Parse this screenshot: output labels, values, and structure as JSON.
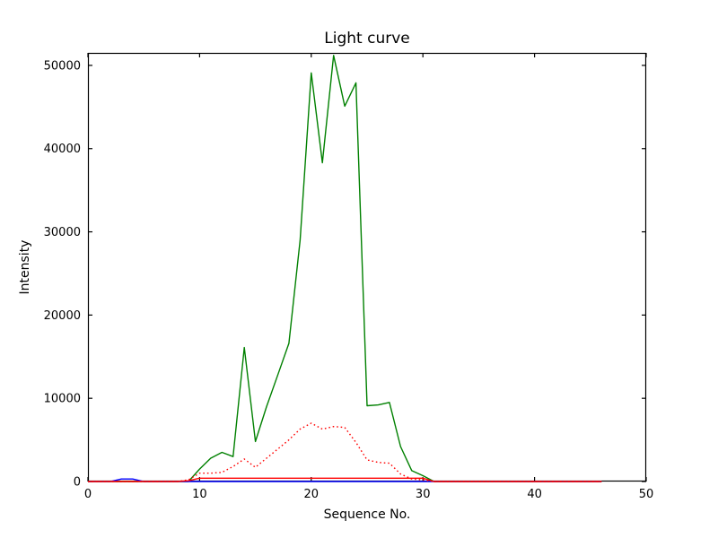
{
  "figure": {
    "background": "#ffffff",
    "axis_color": "#000000"
  },
  "chart_data": {
    "type": "line",
    "title": "Light curve",
    "xlabel": "Sequence No.",
    "ylabel": "Intensity",
    "xlim": [
      0,
      50
    ],
    "ylim": [
      0,
      51500
    ],
    "xticks": [
      0,
      10,
      20,
      30,
      40,
      50
    ],
    "yticks": [
      0,
      10000,
      20000,
      30000,
      40000,
      50000
    ],
    "grid": false,
    "legend": "none",
    "x": [
      0,
      1,
      2,
      3,
      4,
      5,
      6,
      7,
      8,
      9,
      10,
      11,
      12,
      13,
      14,
      15,
      16,
      17,
      18,
      19,
      20,
      21,
      22,
      23,
      24,
      25,
      26,
      27,
      28,
      29,
      30,
      31,
      32,
      33,
      34,
      35,
      36,
      37,
      38,
      39,
      40,
      41,
      42,
      43,
      44,
      45,
      46
    ],
    "series": [
      {
        "name": "green-solid",
        "color": "#008000",
        "style": "solid",
        "y": [
          0,
          0,
          0,
          0,
          0,
          0,
          0,
          0,
          0,
          0,
          1500,
          2800,
          3500,
          3000,
          16100,
          4800,
          9000,
          12800,
          16600,
          29000,
          49100,
          38300,
          51200,
          45100,
          47900,
          9100,
          9200,
          9500,
          4200,
          1300,
          700,
          0,
          0,
          0,
          0,
          0,
          0,
          0,
          0,
          0,
          0,
          0,
          0,
          0,
          0,
          0,
          0
        ]
      },
      {
        "name": "blue-solid",
        "color": "#0000ff",
        "style": "solid",
        "y": [
          0,
          0,
          0,
          300,
          300,
          0,
          0,
          0,
          0,
          0,
          0,
          0,
          0,
          0,
          0,
          0,
          0,
          0,
          0,
          0,
          0,
          0,
          0,
          0,
          0,
          0,
          0,
          0,
          0,
          0,
          0,
          0,
          0,
          0,
          0,
          0,
          0,
          0,
          0,
          0,
          0,
          0,
          0,
          0,
          0,
          0,
          0
        ]
      },
      {
        "name": "red-dotted",
        "color": "#ff0000",
        "style": "dotted",
        "y": [
          0,
          0,
          0,
          0,
          0,
          0,
          0,
          0,
          0,
          200,
          1000,
          1000,
          1100,
          1800,
          2700,
          1700,
          2800,
          3900,
          5000,
          6300,
          7000,
          6300,
          6600,
          6500,
          4700,
          2600,
          2300,
          2200,
          900,
          300,
          200,
          0,
          0,
          0,
          0,
          0,
          0,
          0,
          0,
          0,
          0,
          0,
          0,
          0,
          0,
          0,
          0
        ]
      },
      {
        "name": "red-solid",
        "color": "#ff0000",
        "style": "solid",
        "y": [
          0,
          0,
          0,
          0,
          0,
          0,
          0,
          0,
          0,
          100,
          400,
          400,
          400,
          400,
          400,
          400,
          400,
          400,
          400,
          400,
          400,
          400,
          400,
          400,
          400,
          400,
          400,
          400,
          400,
          400,
          400,
          0,
          0,
          0,
          0,
          0,
          0,
          0,
          0,
          0,
          0,
          0,
          0,
          0,
          0,
          0,
          0
        ]
      }
    ]
  }
}
